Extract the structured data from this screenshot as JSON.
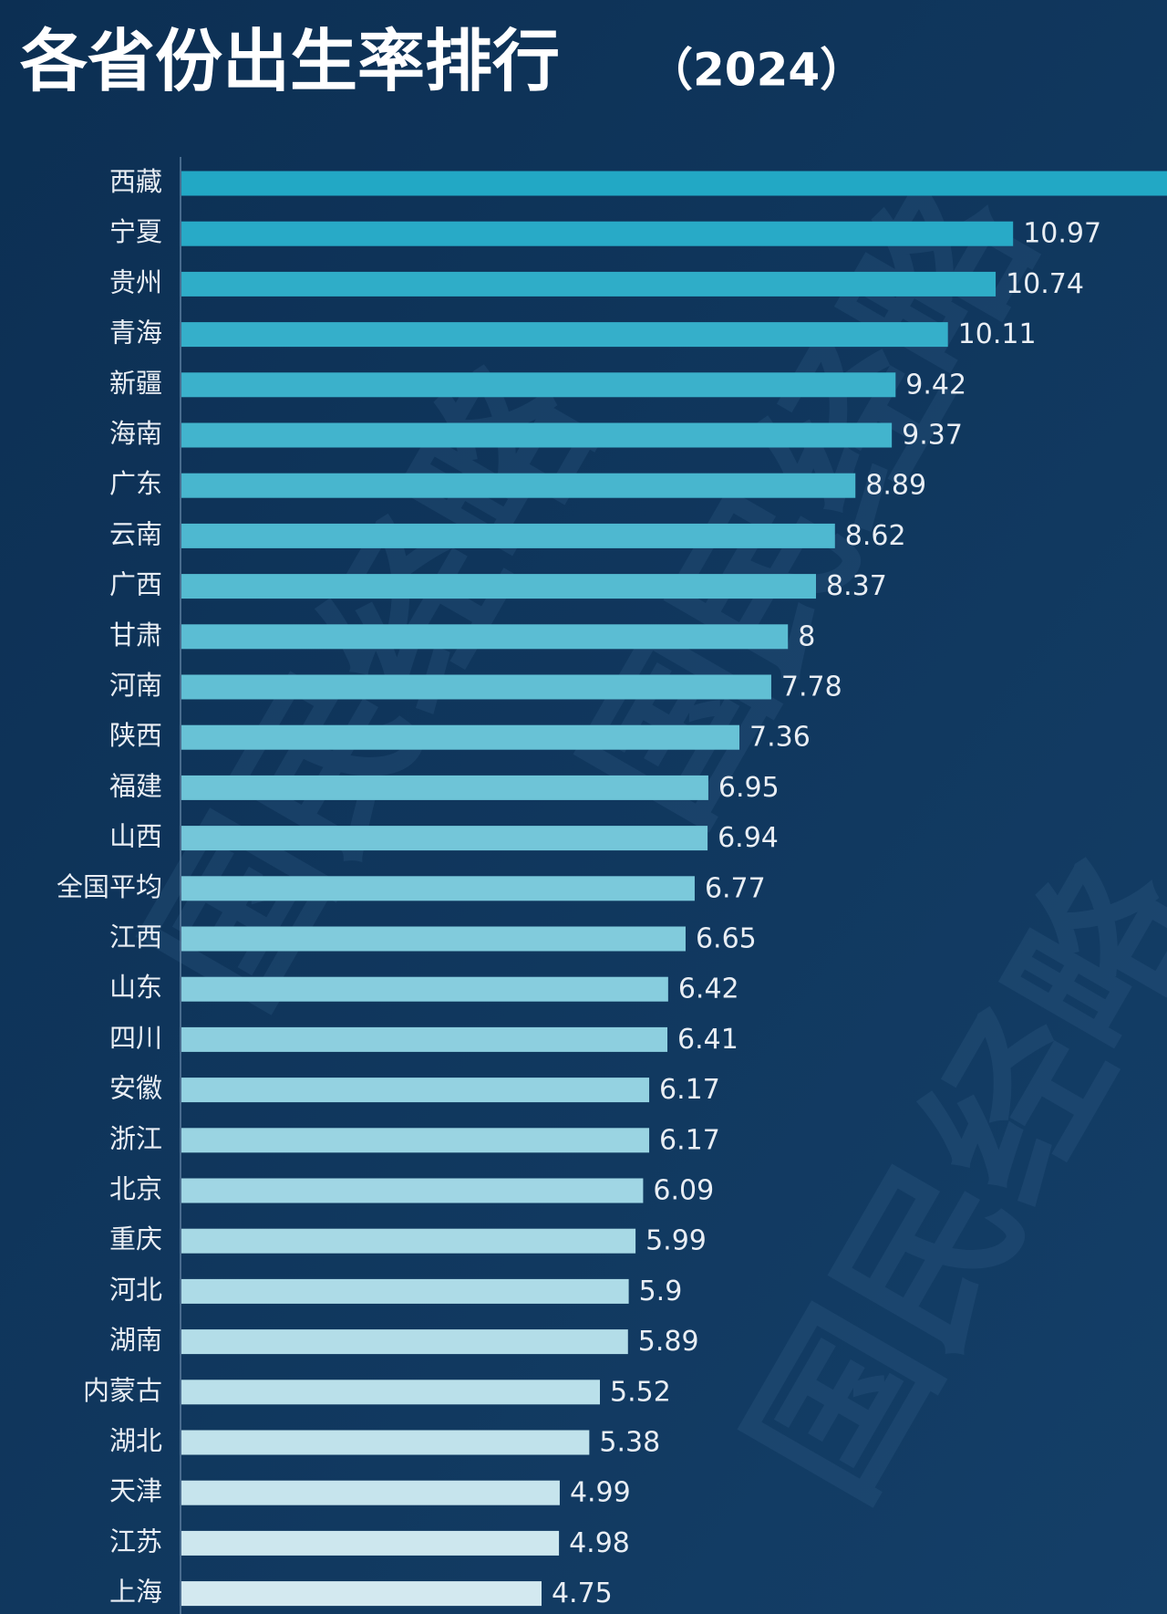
{
  "chart_data": {
    "type": "bar",
    "orientation": "horizontal",
    "title": "各省份出生率排行",
    "title_year": "（2024）",
    "watermark": "国民经略",
    "categories": [
      "西藏",
      "宁夏",
      "贵州",
      "青海",
      "新疆",
      "海南",
      "广东",
      "云南",
      "广西",
      "甘肃",
      "河南",
      "陕西",
      "福建",
      "山西",
      "全国平均",
      "江西",
      "山东",
      "四川",
      "安徽",
      "浙江",
      "北京",
      "重庆",
      "河北",
      "湖南",
      "内蒙古",
      "湖北",
      "天津",
      "江苏",
      "上海"
    ],
    "values": [
      13,
      10.97,
      10.74,
      10.11,
      9.42,
      9.37,
      8.89,
      8.62,
      8.37,
      8,
      7.78,
      7.36,
      6.95,
      6.94,
      6.77,
      6.65,
      6.42,
      6.41,
      6.17,
      6.17,
      6.09,
      5.99,
      5.9,
      5.89,
      5.52,
      5.38,
      4.99,
      4.98,
      4.75
    ],
    "bar_colors": [
      "#22a8c5",
      "#d3e9f0"
    ]
  }
}
